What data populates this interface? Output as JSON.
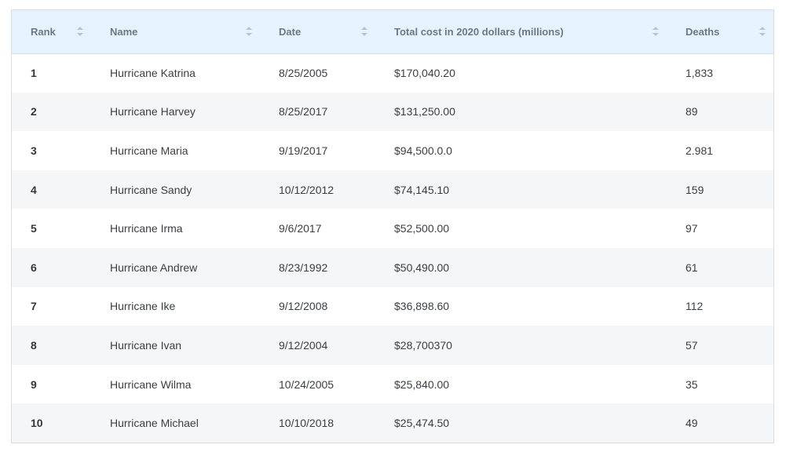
{
  "table": {
    "columns": [
      {
        "key": "rank",
        "label": "Rank"
      },
      {
        "key": "name",
        "label": "Name"
      },
      {
        "key": "date",
        "label": "Date"
      },
      {
        "key": "cost",
        "label": "Total cost in 2020 dollars (millions)"
      },
      {
        "key": "deaths",
        "label": "Deaths"
      }
    ],
    "rows": [
      {
        "rank": "1",
        "name": "Hurricane Katrina",
        "date": "8/25/2005",
        "cost": "$170,040.20",
        "deaths": "1,833"
      },
      {
        "rank": "2",
        "name": "Hurricane Harvey",
        "date": "8/25/2017",
        "cost": "$131,250.00",
        "deaths": "89"
      },
      {
        "rank": "3",
        "name": "Hurricane Maria",
        "date": "9/19/2017",
        "cost": "$94,500.0.0",
        "deaths": "2.981"
      },
      {
        "rank": "4",
        "name": "Hurricane Sandy",
        "date": "10/12/2012",
        "cost": "$74,145.10",
        "deaths": "159"
      },
      {
        "rank": "5",
        "name": "Hurricane Irma",
        "date": "9/6/2017",
        "cost": "$52,500.00",
        "deaths": "97"
      },
      {
        "rank": "6",
        "name": "Hurricane Andrew",
        "date": "8/23/1992",
        "cost": "$50,490.00",
        "deaths": "61"
      },
      {
        "rank": "7",
        "name": "Hurricane Ike",
        "date": "9/12/2008",
        "cost": "$36,898.60",
        "deaths": "112"
      },
      {
        "rank": "8",
        "name": "Hurricane Ivan",
        "date": "9/12/2004",
        "cost": "$28,700370",
        "deaths": "57"
      },
      {
        "rank": "9",
        "name": "Hurricane Wilma",
        "date": "10/24/2005",
        "cost": "$25,840.00",
        "deaths": "35"
      },
      {
        "rank": "10",
        "name": "Hurricane Michael",
        "date": "10/10/2018",
        "cost": "$25,474.50",
        "deaths": "49"
      }
    ]
  },
  "colors": {
    "header_bg": "#e6f2fe",
    "row_alt_bg": "#f5f6f8",
    "border": "#d9dde1"
  },
  "icons": {
    "sort": "sort-icon"
  }
}
